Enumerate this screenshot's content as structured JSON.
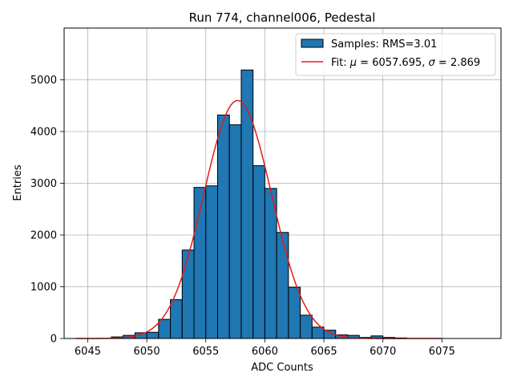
{
  "chart_data": {
    "type": "bar",
    "title": "Run 774, channel006, Pedestal",
    "xlabel": "ADC Counts",
    "ylabel": "Entries",
    "xlim": [
      6043,
      6080
    ],
    "ylim": [
      0,
      6000
    ],
    "xticks": [
      6045,
      6050,
      6055,
      6060,
      6065,
      6070,
      6075
    ],
    "yticks": [
      0,
      1000,
      2000,
      3000,
      4000,
      5000
    ],
    "grid": true,
    "legend_position": "top-right",
    "histogram": {
      "name": "Samples: RMS=3.01",
      "bin_width": 1,
      "bin_starts": [
        6047,
        6048,
        6049,
        6050,
        6051,
        6052,
        6053,
        6054,
        6055,
        6056,
        6057,
        6058,
        6059,
        6060,
        6061,
        6062,
        6063,
        6064,
        6065,
        6066,
        6067,
        6068,
        6069,
        6070,
        6071
      ],
      "values": [
        30,
        60,
        110,
        120,
        370,
        750,
        1710,
        2920,
        2950,
        4320,
        4130,
        5190,
        3340,
        2900,
        2050,
        990,
        450,
        220,
        160,
        70,
        60,
        20,
        50,
        20,
        10
      ],
      "color": "#1f77b4",
      "edge_color": "#000000"
    },
    "fit": {
      "name_prefix": "Fit: ",
      "mu_label": "μ",
      "mu_value": "6057.695",
      "sigma_label": "σ",
      "sigma_value": "2.869",
      "amplitude": 4600,
      "x_start": 6044,
      "x_end": 6075,
      "color": "#e41a1c"
    }
  }
}
